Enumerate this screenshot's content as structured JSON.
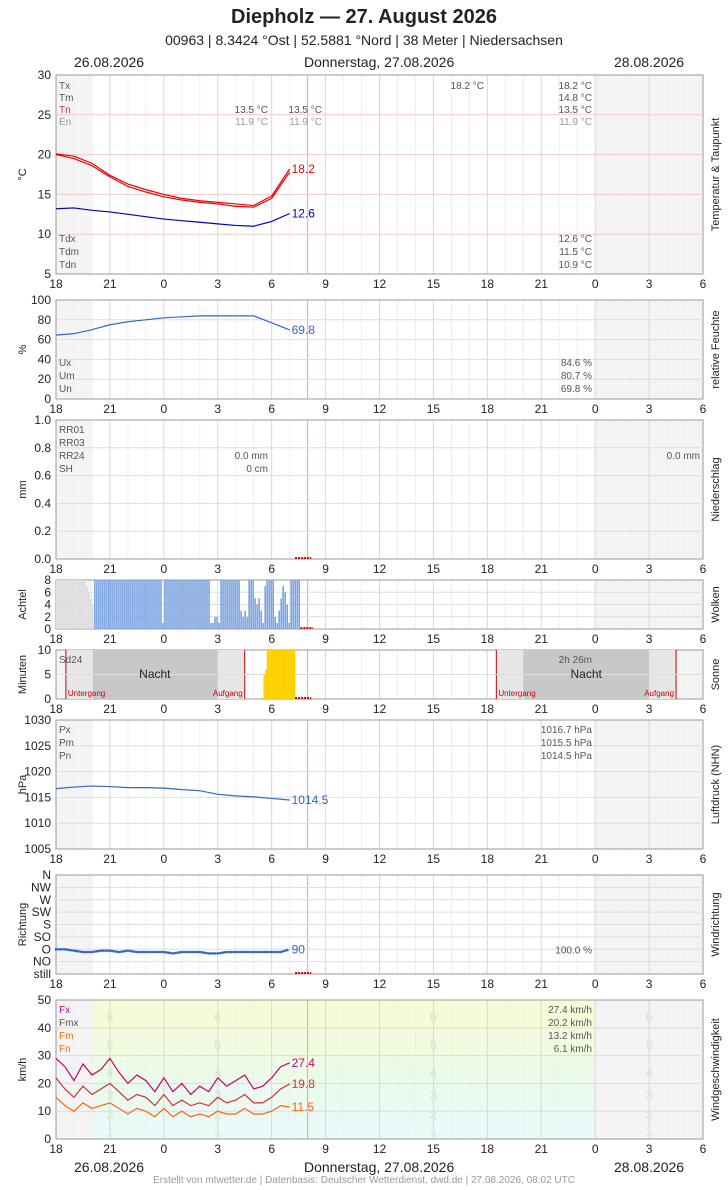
{
  "header": {
    "title": "Diepholz  —  27. August 2026",
    "subtitle": "00963  |  8.3424 °Ost  |  52.5881 °Nord  |  38 Meter  |  Niedersachsen"
  },
  "dates": {
    "left": "26.08.2026",
    "center": "Donnerstag, 27.08.2026",
    "right": "28.08.2026"
  },
  "footer": "Erstellt von mtwetter.de | Datenbasis: Deutscher Wetterdienst, dwd.de | 27.08.2026, 08:02 UTC",
  "x_axis": {
    "tick_labels": [
      "18",
      "21",
      "0",
      "3",
      "6",
      "9",
      "12",
      "15",
      "18",
      "21",
      "0",
      "3",
      "6"
    ],
    "range_hours": [
      0,
      36
    ],
    "current_hour": 14
  },
  "colors": {
    "red": "#ee0000",
    "blue": "#0000cc",
    "royal": "#3366cc",
    "cloud": "#7ba3e0",
    "sun": "#ffd000",
    "night_shade": "#f2f2f2",
    "grid": "#dddddd",
    "now_line": "#ff9999",
    "wind_zone1": "#eafaf9",
    "wind_zone2": "#ecfbe8",
    "wind_zone3": "#f1fbdf",
    "wind_zone4": "#f5fbd6",
    "fx": "#cc0066",
    "fmx": "#cc3333",
    "fm": "#ff6600"
  },
  "chart_data": [
    {
      "id": "temp",
      "type": "line",
      "side_label": "Temperatur & Taupunkt",
      "ylabel": "°C",
      "ylim": [
        5,
        30
      ],
      "yticks": [
        "5",
        "10",
        "15",
        "20",
        "25",
        "30"
      ],
      "x_hours": [
        0,
        1,
        2,
        3,
        4,
        5,
        6,
        7,
        8,
        9,
        10,
        11,
        12,
        13
      ],
      "series": [
        {
          "values": [
            20.1,
            19.8,
            18.9,
            17.4,
            16.3,
            15.6,
            15.0,
            14.5,
            14.2,
            14.0,
            13.8,
            13.6,
            14.8,
            18.2
          ],
          "color": "#ee0000",
          "end_label": "18.2"
        },
        {
          "values": [
            20.0,
            19.5,
            18.6,
            17.2,
            16.0,
            15.3,
            14.7,
            14.3,
            14.0,
            13.8,
            13.5,
            13.4,
            14.5,
            17.8
          ],
          "color": "#ee0000",
          "end_label": ""
        },
        {
          "values": [
            13.2,
            13.3,
            13.0,
            12.8,
            12.5,
            12.2,
            11.9,
            11.7,
            11.5,
            11.3,
            11.1,
            11.0,
            11.6,
            12.6
          ],
          "color": "#0000cc",
          "end_label": "12.6"
        }
      ],
      "stats_left": [
        {
          "label": "Tx",
          "color": "#555555"
        },
        {
          "label": "Tm",
          "color": "#555555"
        },
        {
          "label": "Tn",
          "color": "#cc3333"
        },
        {
          "label": "En",
          "color": "#999999"
        }
      ],
      "stats_mid": [
        {
          "row": 2,
          "text": "13.5 °C",
          "color": "#555555"
        },
        {
          "row": 3,
          "text": "11.9 °C",
          "color": "#999999"
        }
      ],
      "stats_mid2": [
        {
          "row": 2,
          "text": "13.5 °C",
          "color": "#555555"
        },
        {
          "row": 3,
          "text": "11.9 °C",
          "color": "#999999"
        }
      ],
      "stats_mid3": [
        {
          "row": 0,
          "text": "18.2 °C",
          "color": "#555555"
        }
      ],
      "stats_right": [
        {
          "row": 0,
          "text": "18.2 °C",
          "color": "#555555"
        },
        {
          "row": 1,
          "text": "14.8 °C",
          "color": "#555555"
        },
        {
          "row": 2,
          "text": "13.5 °C",
          "color": "#555555"
        },
        {
          "row": 3,
          "text": "11.9 °C",
          "color": "#999999"
        }
      ],
      "stats_bottom_left": [
        "Tdx",
        "Tdm",
        "Tdn"
      ],
      "stats_bottom_right": [
        "12.6 °C",
        "11.5 °C",
        "10.9 °C"
      ]
    },
    {
      "id": "humidity",
      "type": "line",
      "side_label": "relative Feuchte",
      "ylabel": "%",
      "ylim": [
        0,
        100
      ],
      "yticks": [
        "0",
        "20",
        "40",
        "60",
        "80",
        "100"
      ],
      "x_hours": [
        0,
        1,
        2,
        3,
        4,
        5,
        6,
        7,
        8,
        9,
        10,
        11,
        12,
        13
      ],
      "series": [
        {
          "values": [
            64.5,
            66,
            70,
            75,
            78,
            80,
            82,
            83,
            84,
            84,
            84,
            84,
            77,
            69.8
          ],
          "color": "#3366cc",
          "end_label": "69.8"
        }
      ],
      "stats_bottom_left": [
        "Ux",
        "Um",
        "Un"
      ],
      "stats_bottom_right": [
        "84.6 %",
        "80.7 %",
        "69.8 %"
      ]
    },
    {
      "id": "precip",
      "type": "bar",
      "side_label": "Niederschlag",
      "ylabel": "mm",
      "ylim": [
        0,
        1.0
      ],
      "yticks": [
        "0.0",
        "0.2",
        "0.4",
        "0.6",
        "0.8",
        "1.0"
      ],
      "stats_left": [
        "RR01",
        "RR03",
        "RR24",
        "SH"
      ],
      "stats_mid": [
        "0.0 mm",
        "0 cm"
      ],
      "stats_right": "0.0 mm"
    },
    {
      "id": "clouds",
      "type": "bar",
      "side_label": "Wolken",
      "ylabel": "Achtel",
      "ylim": [
        0,
        8
      ],
      "yticks": [
        "0",
        "2",
        "4",
        "6",
        "8"
      ],
      "bars": [
        8,
        8,
        8,
        8,
        8,
        8,
        8,
        8,
        8,
        8,
        8,
        8,
        8,
        8,
        8,
        7,
        6,
        5,
        4,
        8,
        8,
        8,
        8,
        8,
        8,
        8,
        8,
        8,
        8,
        8,
        8,
        8,
        8,
        8,
        8,
        8,
        8,
        8,
        8,
        8,
        8,
        8,
        8,
        8,
        8,
        8,
        8,
        8,
        8,
        8,
        8,
        8,
        8,
        1,
        8,
        8,
        8,
        8,
        8,
        8,
        8,
        8,
        8,
        8,
        8,
        8,
        8,
        8,
        8,
        8,
        8,
        8,
        8,
        8,
        8,
        8,
        8,
        1,
        1,
        2,
        2,
        1,
        8,
        8,
        8,
        8,
        8,
        8,
        8,
        8,
        8,
        8,
        3,
        2,
        3,
        2,
        8,
        8,
        8,
        5,
        4,
        5,
        3,
        1,
        7,
        8,
        8,
        8,
        8,
        2,
        1,
        3,
        5,
        7,
        6,
        4,
        1,
        8,
        8,
        8,
        8,
        8
      ]
    },
    {
      "id": "sun",
      "type": "bar",
      "side_label": "Sonne",
      "ylabel": "Minuten",
      "ylim": [
        0,
        10
      ],
      "yticks": [
        "0",
        "5",
        "10"
      ],
      "label_sd": "Sd24",
      "label_sd2": "2h 26m",
      "night": "Nacht",
      "sunset": "Untergang",
      "sunrise": "Aufgang",
      "sun_bars": [
        0,
        0,
        0,
        0,
        0,
        0,
        0,
        0,
        5,
        6,
        10,
        10,
        10,
        10,
        10,
        10,
        10,
        10,
        10,
        10,
        10,
        10,
        10,
        10,
        10,
        10,
        10
      ]
    },
    {
      "id": "pressure",
      "type": "line",
      "side_label": "Luftdruck (NHN)",
      "ylabel": "hPa",
      "ylim": [
        1005,
        1030
      ],
      "yticks": [
        "1005",
        "1010",
        "1015",
        "1020",
        "1025",
        "1030"
      ],
      "x_hours": [
        0,
        1,
        2,
        3,
        4,
        5,
        6,
        7,
        8,
        9,
        10,
        11,
        12,
        13
      ],
      "series": [
        {
          "values": [
            1016.7,
            1017.0,
            1017.2,
            1017.1,
            1016.9,
            1016.9,
            1016.8,
            1016.5,
            1016.3,
            1015.6,
            1015.3,
            1015.1,
            1014.8,
            1014.5
          ],
          "color": "#3366cc",
          "end_label": "1014.5"
        }
      ],
      "stats_left": [
        "Px",
        "Pm",
        "Pn"
      ],
      "stats_right": [
        "1016.7 hPa",
        "1015.5 hPa",
        "1014.5 hPa"
      ]
    },
    {
      "id": "winddir",
      "type": "scatter",
      "side_label": "Windrichtung",
      "ylabel": "Richtung",
      "yticks": [
        "still",
        "NO",
        "O",
        "SO",
        "S",
        "SW",
        "W",
        "NW",
        "N"
      ],
      "x_hours": [
        0,
        0.5,
        1,
        1.5,
        2,
        2.5,
        3,
        3.5,
        4,
        4.5,
        5,
        5.5,
        6,
        6.5,
        7,
        7.5,
        8,
        8.5,
        9,
        9.5,
        10,
        10.5,
        11,
        11.5,
        12,
        12.5,
        13
      ],
      "values": [
        90,
        90,
        85,
        80,
        80,
        85,
        85,
        80,
        85,
        80,
        80,
        80,
        80,
        75,
        80,
        80,
        80,
        75,
        75,
        80,
        80,
        80,
        80,
        80,
        80,
        80,
        90
      ],
      "end_label": "90",
      "stat": "100.0 %"
    },
    {
      "id": "wind",
      "type": "line",
      "side_label": "Windgeschwindigkeit",
      "ylabel": "km/h",
      "ylim": [
        0,
        50
      ],
      "yticks": [
        "0",
        "10",
        "20",
        "30",
        "40",
        "50"
      ],
      "beaufort": [
        "1",
        "2",
        "3",
        "4",
        "5",
        "6"
      ],
      "x_hours": [
        0,
        0.5,
        1,
        1.5,
        2,
        2.5,
        3,
        3.5,
        4,
        4.5,
        5,
        5.5,
        6,
        6.5,
        7,
        7.5,
        8,
        8.5,
        9,
        9.5,
        10,
        10.5,
        11,
        11.5,
        12,
        12.5,
        13
      ],
      "series": [
        {
          "name": "Fx",
          "values": [
            29,
            26,
            21,
            27,
            23,
            25,
            29,
            24,
            20,
            23,
            21,
            17,
            22,
            17,
            20,
            16,
            19,
            17,
            22,
            19,
            21,
            23,
            18,
            19,
            22,
            26,
            27.4
          ],
          "color": "#cc0066",
          "end_label": "27.4"
        },
        {
          "name": "Fmx",
          "values": [
            22,
            18,
            15,
            19,
            16,
            18,
            20,
            17,
            14,
            16,
            15,
            12,
            16,
            12,
            14,
            12,
            13,
            12,
            15,
            13,
            14,
            16,
            13,
            13,
            15,
            18,
            19.8
          ],
          "color": "#cc3333",
          "end_label": "19.8"
        },
        {
          "name": "Fm",
          "values": [
            15,
            12,
            10,
            13,
            11,
            12,
            13,
            11,
            9,
            11,
            10,
            8,
            11,
            8,
            10,
            8,
            9,
            8,
            10,
            9,
            9,
            11,
            9,
            9,
            10,
            12,
            11.5
          ],
          "color": "#ff6600",
          "end_label": "11.5"
        }
      ],
      "stats_left": [
        "Fx",
        "Fmx",
        "Fm",
        "Fn"
      ],
      "stats_right": [
        "27.4 km/h",
        "20.2 km/h",
        "13.2 km/h",
        "6.1 km/h"
      ]
    }
  ]
}
